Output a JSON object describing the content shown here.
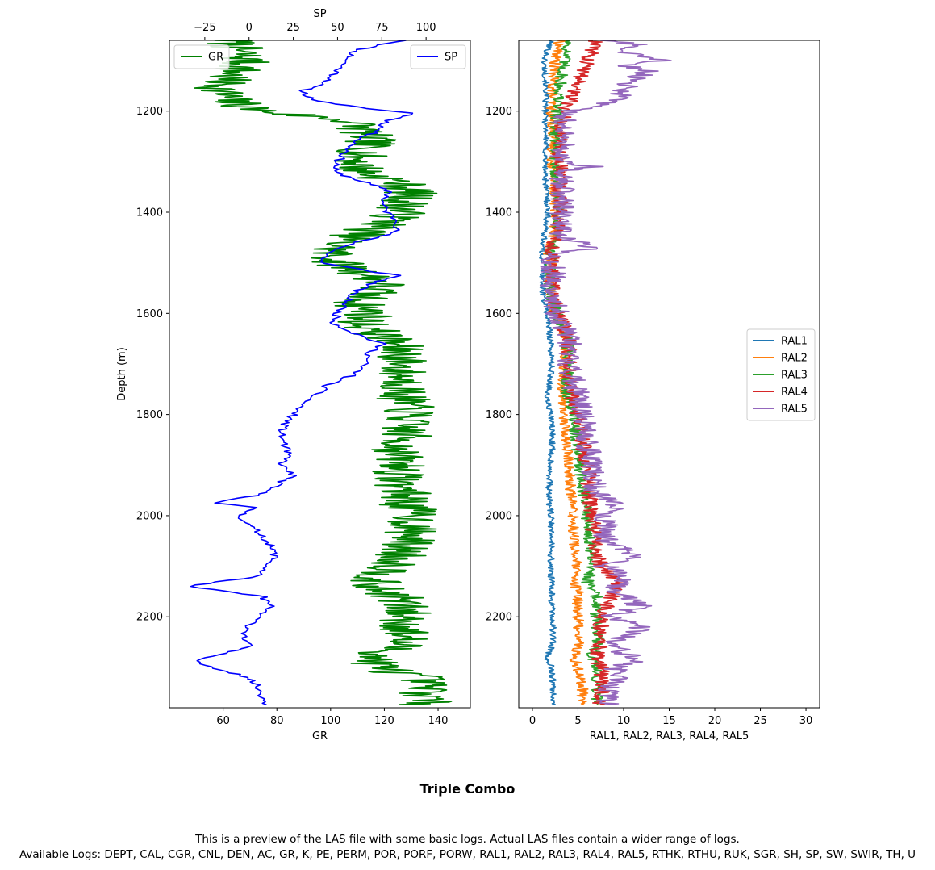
{
  "suptitle": "Triple Combo",
  "caption_line1": "This is a preview of the LAS file with some basic logs. Actual LAS files contain a wider range of logs.",
  "caption_line2": "Available Logs: DEPT, CAL, CGR, CNL, DEN, AC, GR, K, PE, PERM, POR, PORF, PORW, RAL1, RAL2, RAL3, RAL4, RAL5, RTHK, RTHU, RUK, SGR, SH, SP, SW, SWIR, TH, U",
  "chart_data": [
    {
      "type": "line",
      "ylabel": "Depth (m)",
      "ylim": [
        1060,
        2380
      ],
      "y_inverted": true,
      "yticks": [
        1200,
        1400,
        1600,
        1800,
        2000,
        2200
      ],
      "xlabel_bottom": "GR",
      "xlim_bottom": [
        40,
        152
      ],
      "xticks_bottom": [
        60,
        80,
        100,
        120,
        140
      ],
      "xlabel_top": "SP",
      "xlim_top": [
        -45,
        125
      ],
      "xticks_top": [
        -25,
        0,
        25,
        50,
        75,
        100
      ],
      "series": [
        {
          "name": "GR",
          "axis": "bottom",
          "color": "#008000",
          "legend": "upper left",
          "depth": [
            1060,
            1080,
            1100,
            1120,
            1140,
            1160,
            1180,
            1200,
            1220,
            1240,
            1260,
            1280,
            1300,
            1320,
            1340,
            1360,
            1380,
            1400,
            1420,
            1440,
            1460,
            1480,
            1500,
            1520,
            1540,
            1560,
            1580,
            1600,
            1620,
            1640,
            1660,
            1680,
            1700,
            1720,
            1740,
            1760,
            1780,
            1800,
            1820,
            1840,
            1860,
            1880,
            1900,
            1920,
            1940,
            1960,
            1980,
            2000,
            2020,
            2040,
            2060,
            2080,
            2100,
            2120,
            2140,
            2160,
            2180,
            2200,
            2220,
            2240,
            2260,
            2280,
            2300,
            2320,
            2340,
            2360,
            2375
          ],
          "values": [
            62,
            66,
            68,
            65,
            60,
            59,
            62,
            75,
            108,
            112,
            115,
            112,
            110,
            112,
            125,
            130,
            128,
            126,
            122,
            112,
            104,
            100,
            102,
            112,
            120,
            115,
            110,
            115,
            112,
            118,
            124,
            127,
            127,
            126,
            128,
            126,
            128,
            130,
            127,
            128,
            126,
            124,
            127,
            125,
            126,
            128,
            128,
            132,
            130,
            130,
            128,
            126,
            124,
            118,
            115,
            125,
            127,
            128,
            127,
            128,
            125,
            116,
            118,
            133,
            135,
            136,
            134
          ]
        },
        {
          "name": "SP",
          "axis": "top",
          "color": "#0000ff",
          "legend": "upper right",
          "depth": [
            1060,
            1065,
            1080,
            1100,
            1120,
            1140,
            1160,
            1175,
            1185,
            1200,
            1205,
            1210,
            1220,
            1240,
            1260,
            1280,
            1300,
            1320,
            1340,
            1360,
            1380,
            1400,
            1420,
            1440,
            1460,
            1480,
            1500,
            1520,
            1525,
            1540,
            1560,
            1580,
            1600,
            1620,
            1640,
            1660,
            1680,
            1700,
            1720,
            1740,
            1760,
            1780,
            1800,
            1820,
            1840,
            1860,
            1880,
            1900,
            1920,
            1940,
            1960,
            1975,
            1985,
            1990,
            2000,
            2020,
            2040,
            2060,
            2080,
            2100,
            2120,
            2140,
            2160,
            2180,
            2200,
            2220,
            2240,
            2260,
            2280,
            2290,
            2300,
            2320,
            2340,
            2360,
            2375
          ],
          "values": [
            90,
            80,
            60,
            55,
            50,
            45,
            30,
            35,
            45,
            80,
            95,
            88,
            78,
            72,
            60,
            55,
            50,
            48,
            65,
            80,
            75,
            78,
            85,
            82,
            60,
            45,
            40,
            75,
            85,
            70,
            58,
            55,
            50,
            48,
            60,
            75,
            68,
            65,
            60,
            45,
            38,
            30,
            25,
            20,
            18,
            20,
            22,
            18,
            25,
            15,
            5,
            -20,
            5,
            0,
            -5,
            0,
            8,
            12,
            15,
            10,
            5,
            -35,
            8,
            12,
            5,
            0,
            -3,
            0,
            -25,
            -30,
            -20,
            0,
            5,
            8,
            10
          ]
        }
      ]
    },
    {
      "type": "line",
      "ylim": [
        1060,
        2380
      ],
      "y_inverted": true,
      "yticks": [
        1200,
        1400,
        1600,
        1800,
        2000,
        2200
      ],
      "xlabel": "RAL1, RAL2, RAL3, RAL4, RAL5",
      "xlim": [
        -1.5,
        31.5
      ],
      "xticks": [
        0,
        5,
        10,
        15,
        20,
        25,
        30
      ],
      "legend": "center right",
      "series": [
        {
          "name": "RAL1",
          "color": "#1f77b4",
          "depth": [
            1060,
            1100,
            1150,
            1200,
            1250,
            1300,
            1350,
            1400,
            1450,
            1480,
            1500,
            1550,
            1600,
            1650,
            1700,
            1750,
            1760,
            1800,
            1850,
            1900,
            1950,
            2000,
            2050,
            2100,
            2150,
            2200,
            2250,
            2280,
            2300,
            2340,
            2375
          ],
          "values": [
            2.0,
            1.3,
            1.5,
            1.4,
            1.5,
            1.4,
            1.5,
            1.7,
            1.3,
            1.0,
            1.2,
            1.1,
            1.6,
            2.0,
            2.1,
            1.9,
            1.5,
            2.0,
            2.2,
            2.0,
            1.8,
            2.0,
            2.1,
            2.0,
            2.1,
            2.2,
            2.3,
            1.6,
            2.1,
            2.3,
            2.4
          ]
        },
        {
          "name": "RAL2",
          "color": "#ff7f0e",
          "depth": [
            1060,
            1100,
            1150,
            1200,
            1250,
            1300,
            1350,
            1400,
            1450,
            1480,
            1500,
            1550,
            1600,
            1650,
            1700,
            1750,
            1800,
            1850,
            1900,
            1950,
            2000,
            2050,
            2100,
            2130,
            2150,
            2200,
            2250,
            2280,
            2300,
            2340,
            2375
          ],
          "values": [
            3.0,
            2.5,
            2.2,
            2.1,
            2.3,
            2.2,
            2.4,
            2.6,
            2.3,
            1.8,
            2.0,
            1.9,
            2.5,
            3.8,
            3.6,
            3.3,
            3.5,
            3.7,
            4.0,
            4.2,
            4.5,
            4.6,
            4.8,
            4.5,
            5.0,
            5.0,
            5.2,
            4.5,
            5.0,
            5.5,
            5.5
          ]
        },
        {
          "name": "RAL3",
          "color": "#2ca02c",
          "depth": [
            1060,
            1100,
            1150,
            1200,
            1250,
            1300,
            1350,
            1400,
            1450,
            1480,
            1500,
            1550,
            1600,
            1650,
            1700,
            1750,
            1800,
            1850,
            1900,
            1950,
            2000,
            2050,
            2100,
            2130,
            2150,
            2200,
            2250,
            2280,
            2300,
            2340,
            2375
          ],
          "values": [
            4.0,
            3.5,
            3.0,
            2.7,
            2.6,
            2.5,
            2.8,
            2.8,
            2.5,
            2.0,
            2.1,
            2.0,
            2.6,
            3.8,
            3.9,
            3.8,
            4.5,
            4.8,
            5.2,
            5.6,
            6.0,
            6.3,
            6.5,
            6.0,
            7.0,
            7.0,
            7.2,
            6.5,
            7.0,
            7.2,
            7.0
          ]
        },
        {
          "name": "RAL4",
          "color": "#d62728",
          "depth": [
            1060,
            1100,
            1150,
            1200,
            1250,
            1300,
            1350,
            1400,
            1450,
            1480,
            1500,
            1550,
            1600,
            1650,
            1700,
            1750,
            1800,
            1850,
            1900,
            1950,
            2000,
            2050,
            2100,
            2130,
            2150,
            2200,
            2250,
            2280,
            2300,
            2340,
            2375
          ],
          "values": [
            7.0,
            6.0,
            5.0,
            3.5,
            3.2,
            3.0,
            3.0,
            3.0,
            2.6,
            2.1,
            2.2,
            2.1,
            2.7,
            4.0,
            4.0,
            4.2,
            5.0,
            5.5,
            6.0,
            6.2,
            6.5,
            6.8,
            7.5,
            9.5,
            9.0,
            7.5,
            7.5,
            7.0,
            7.5,
            7.6,
            7.4
          ]
        },
        {
          "name": "RAL5",
          "color": "#9467bd",
          "depth": [
            1060,
            1070,
            1080,
            1100,
            1110,
            1120,
            1140,
            1160,
            1180,
            1200,
            1220,
            1250,
            1300,
            1310,
            1320,
            1350,
            1400,
            1450,
            1470,
            1480,
            1500,
            1550,
            1600,
            1650,
            1700,
            1750,
            1800,
            1850,
            1900,
            1950,
            1980,
            2000,
            2050,
            2080,
            2100,
            2120,
            2150,
            2180,
            2200,
            2220,
            2250,
            2270,
            2285,
            2300,
            2320,
            2340,
            2360,
            2375
          ],
          "values": [
            8.0,
            12.0,
            9.0,
            14.0,
            10.0,
            13.0,
            11.0,
            10.0,
            9.0,
            4.0,
            3.5,
            3.5,
            3.3,
            7.0,
            3.0,
            3.2,
            3.3,
            3.0,
            7.0,
            2.5,
            2.3,
            2.2,
            2.8,
            4.0,
            4.0,
            4.8,
            5.5,
            6.0,
            6.5,
            7.0,
            9.0,
            8.0,
            8.0,
            11.0,
            8.0,
            10.0,
            9.0,
            12.0,
            8.5,
            12.0,
            9.0,
            9.5,
            12.0,
            9.0,
            10.0,
            8.5,
            8.5,
            8.0
          ]
        }
      ]
    }
  ]
}
